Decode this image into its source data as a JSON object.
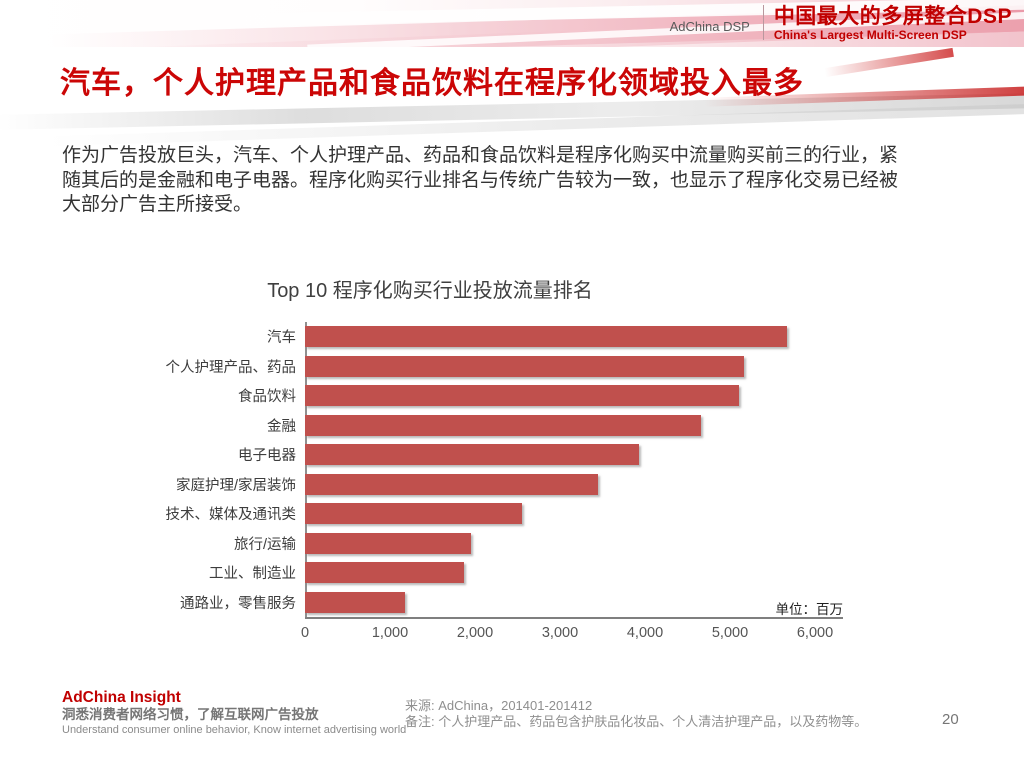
{
  "header": {
    "brand_left": "AdChina DSP",
    "brand_cn": "中国最大的多屏整合DSP",
    "brand_en": "China's Largest Multi-Screen DSP"
  },
  "slide": {
    "title": "汽车，个人护理产品和食品饮料在程序化领域投入最多",
    "body": "作为广告投放巨头，汽车、个人护理产品、药品和食品饮料是程序化购买中流量购买前三的行业，紧\n随其后的是金融和电子电器。程序化购买行业排名与传统广告较为一致，也显示了程序化交易已经被\n大部分广告主所接受。",
    "page_number": "20"
  },
  "chart_data": {
    "type": "bar",
    "orientation": "horizontal",
    "title": "Top 10 程序化购买行业投放流量排名",
    "unit_label": "单位：百万",
    "categories": [
      "汽车",
      "个人护理产品、药品",
      "食品饮料",
      "金融",
      "电子电器",
      "家庭护理/家居装饰",
      "技术、媒体及通讯类",
      "旅行/运输",
      "工业、制造业",
      "通路业，零售服务"
    ],
    "values": [
      5670,
      5160,
      5100,
      4660,
      3930,
      3450,
      2550,
      1950,
      1870,
      1180
    ],
    "xlim": [
      0,
      6000
    ],
    "x_ticks": [
      "0",
      "1,000",
      "2,000",
      "3,000",
      "4,000",
      "5,000",
      "6,000"
    ],
    "xlabel": "",
    "ylabel": "",
    "bar_color": "#c0504d",
    "grid": false,
    "legend": false
  },
  "footer": {
    "brand": "AdChina Insight",
    "tagline_cn": "洞悉消费者网络习惯，了解互联网广告投放",
    "tagline_en": "Understand consumer online behavior, Know internet advertising world",
    "source": "来源: AdChina，201401-201412",
    "note": "备注: 个人护理产品、药品包含护肤品化妆品、个人清洁护理产品，以及药物等。"
  },
  "colors": {
    "brand_red": "#c00000",
    "title_red": "#cb0606",
    "bar_red": "#c0504d",
    "axis_gray": "#7f7f7f",
    "body_text": "#333333",
    "footer_gray": "#8f8f8f"
  }
}
